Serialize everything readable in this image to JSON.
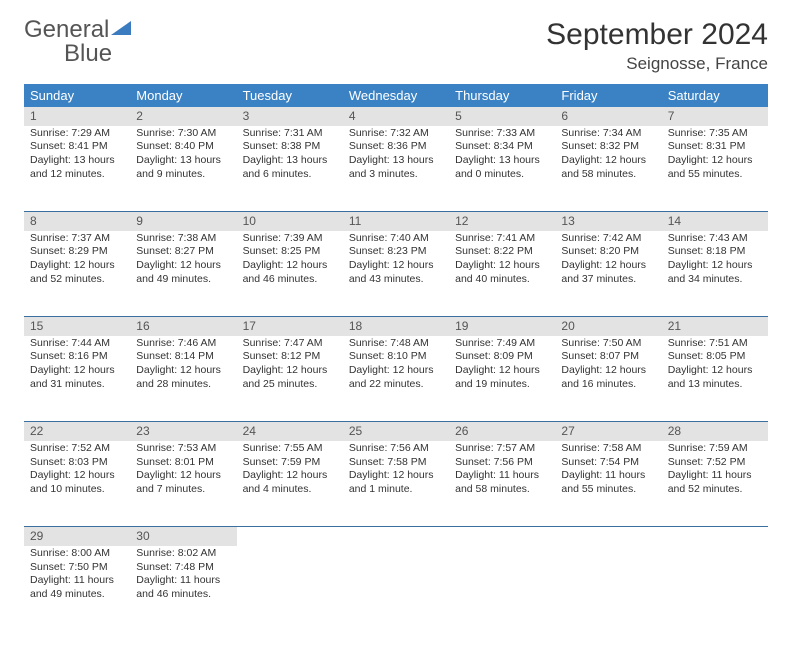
{
  "logo": {
    "word1": "General",
    "word2": "Blue"
  },
  "title": "September 2024",
  "location": "Seignosse, France",
  "colors": {
    "header_bg": "#3b82c4",
    "header_text": "#ffffff",
    "row_divider": "#3b6fa0",
    "shade_bg": "#e3e3e3",
    "logo_accent": "#3b7bbf",
    "body_text": "#333333"
  },
  "day_headers": [
    "Sunday",
    "Monday",
    "Tuesday",
    "Wednesday",
    "Thursday",
    "Friday",
    "Saturday"
  ],
  "weeks": [
    [
      {
        "n": "1",
        "sr": "Sunrise: 7:29 AM",
        "ss": "Sunset: 8:41 PM",
        "d1": "Daylight: 13 hours",
        "d2": "and 12 minutes."
      },
      {
        "n": "2",
        "sr": "Sunrise: 7:30 AM",
        "ss": "Sunset: 8:40 PM",
        "d1": "Daylight: 13 hours",
        "d2": "and 9 minutes."
      },
      {
        "n": "3",
        "sr": "Sunrise: 7:31 AM",
        "ss": "Sunset: 8:38 PM",
        "d1": "Daylight: 13 hours",
        "d2": "and 6 minutes."
      },
      {
        "n": "4",
        "sr": "Sunrise: 7:32 AM",
        "ss": "Sunset: 8:36 PM",
        "d1": "Daylight: 13 hours",
        "d2": "and 3 minutes."
      },
      {
        "n": "5",
        "sr": "Sunrise: 7:33 AM",
        "ss": "Sunset: 8:34 PM",
        "d1": "Daylight: 13 hours",
        "d2": "and 0 minutes."
      },
      {
        "n": "6",
        "sr": "Sunrise: 7:34 AM",
        "ss": "Sunset: 8:32 PM",
        "d1": "Daylight: 12 hours",
        "d2": "and 58 minutes."
      },
      {
        "n": "7",
        "sr": "Sunrise: 7:35 AM",
        "ss": "Sunset: 8:31 PM",
        "d1": "Daylight: 12 hours",
        "d2": "and 55 minutes."
      }
    ],
    [
      {
        "n": "8",
        "sr": "Sunrise: 7:37 AM",
        "ss": "Sunset: 8:29 PM",
        "d1": "Daylight: 12 hours",
        "d2": "and 52 minutes."
      },
      {
        "n": "9",
        "sr": "Sunrise: 7:38 AM",
        "ss": "Sunset: 8:27 PM",
        "d1": "Daylight: 12 hours",
        "d2": "and 49 minutes."
      },
      {
        "n": "10",
        "sr": "Sunrise: 7:39 AM",
        "ss": "Sunset: 8:25 PM",
        "d1": "Daylight: 12 hours",
        "d2": "and 46 minutes."
      },
      {
        "n": "11",
        "sr": "Sunrise: 7:40 AM",
        "ss": "Sunset: 8:23 PM",
        "d1": "Daylight: 12 hours",
        "d2": "and 43 minutes."
      },
      {
        "n": "12",
        "sr": "Sunrise: 7:41 AM",
        "ss": "Sunset: 8:22 PM",
        "d1": "Daylight: 12 hours",
        "d2": "and 40 minutes."
      },
      {
        "n": "13",
        "sr": "Sunrise: 7:42 AM",
        "ss": "Sunset: 8:20 PM",
        "d1": "Daylight: 12 hours",
        "d2": "and 37 minutes."
      },
      {
        "n": "14",
        "sr": "Sunrise: 7:43 AM",
        "ss": "Sunset: 8:18 PM",
        "d1": "Daylight: 12 hours",
        "d2": "and 34 minutes."
      }
    ],
    [
      {
        "n": "15",
        "sr": "Sunrise: 7:44 AM",
        "ss": "Sunset: 8:16 PM",
        "d1": "Daylight: 12 hours",
        "d2": "and 31 minutes."
      },
      {
        "n": "16",
        "sr": "Sunrise: 7:46 AM",
        "ss": "Sunset: 8:14 PM",
        "d1": "Daylight: 12 hours",
        "d2": "and 28 minutes."
      },
      {
        "n": "17",
        "sr": "Sunrise: 7:47 AM",
        "ss": "Sunset: 8:12 PM",
        "d1": "Daylight: 12 hours",
        "d2": "and 25 minutes."
      },
      {
        "n": "18",
        "sr": "Sunrise: 7:48 AM",
        "ss": "Sunset: 8:10 PM",
        "d1": "Daylight: 12 hours",
        "d2": "and 22 minutes."
      },
      {
        "n": "19",
        "sr": "Sunrise: 7:49 AM",
        "ss": "Sunset: 8:09 PM",
        "d1": "Daylight: 12 hours",
        "d2": "and 19 minutes."
      },
      {
        "n": "20",
        "sr": "Sunrise: 7:50 AM",
        "ss": "Sunset: 8:07 PM",
        "d1": "Daylight: 12 hours",
        "d2": "and 16 minutes."
      },
      {
        "n": "21",
        "sr": "Sunrise: 7:51 AM",
        "ss": "Sunset: 8:05 PM",
        "d1": "Daylight: 12 hours",
        "d2": "and 13 minutes."
      }
    ],
    [
      {
        "n": "22",
        "sr": "Sunrise: 7:52 AM",
        "ss": "Sunset: 8:03 PM",
        "d1": "Daylight: 12 hours",
        "d2": "and 10 minutes."
      },
      {
        "n": "23",
        "sr": "Sunrise: 7:53 AM",
        "ss": "Sunset: 8:01 PM",
        "d1": "Daylight: 12 hours",
        "d2": "and 7 minutes."
      },
      {
        "n": "24",
        "sr": "Sunrise: 7:55 AM",
        "ss": "Sunset: 7:59 PM",
        "d1": "Daylight: 12 hours",
        "d2": "and 4 minutes."
      },
      {
        "n": "25",
        "sr": "Sunrise: 7:56 AM",
        "ss": "Sunset: 7:58 PM",
        "d1": "Daylight: 12 hours",
        "d2": "and 1 minute."
      },
      {
        "n": "26",
        "sr": "Sunrise: 7:57 AM",
        "ss": "Sunset: 7:56 PM",
        "d1": "Daylight: 11 hours",
        "d2": "and 58 minutes."
      },
      {
        "n": "27",
        "sr": "Sunrise: 7:58 AM",
        "ss": "Sunset: 7:54 PM",
        "d1": "Daylight: 11 hours",
        "d2": "and 55 minutes."
      },
      {
        "n": "28",
        "sr": "Sunrise: 7:59 AM",
        "ss": "Sunset: 7:52 PM",
        "d1": "Daylight: 11 hours",
        "d2": "and 52 minutes."
      }
    ],
    [
      {
        "n": "29",
        "sr": "Sunrise: 8:00 AM",
        "ss": "Sunset: 7:50 PM",
        "d1": "Daylight: 11 hours",
        "d2": "and 49 minutes."
      },
      {
        "n": "30",
        "sr": "Sunrise: 8:02 AM",
        "ss": "Sunset: 7:48 PM",
        "d1": "Daylight: 11 hours",
        "d2": "and 46 minutes."
      },
      null,
      null,
      null,
      null,
      null
    ]
  ]
}
